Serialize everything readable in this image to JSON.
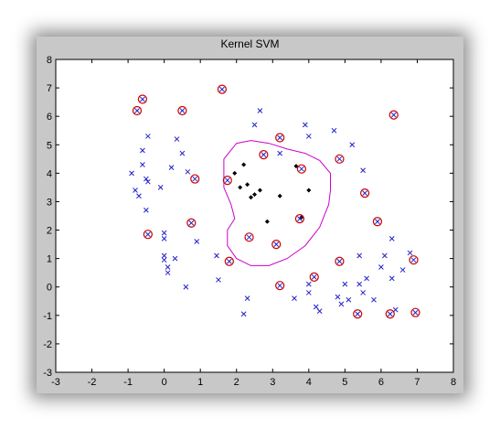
{
  "chart_data": {
    "type": "scatter",
    "title": "Kernel SVM",
    "xlim": [
      -3,
      8
    ],
    "ylim": [
      -3,
      8
    ],
    "xticks": [
      "-3",
      "-2",
      "-1",
      "0",
      "1",
      "2",
      "3",
      "4",
      "5",
      "6",
      "7",
      "8"
    ],
    "yticks": [
      "-3",
      "-2",
      "-1",
      "0",
      "1",
      "2",
      "3",
      "4",
      "5",
      "6",
      "7",
      "8"
    ],
    "grid": false,
    "colors": {
      "positive": "#000000",
      "negative": "#2222cc",
      "support_vector": "#cc0000",
      "boundary": "#cc00cc",
      "plot_bg": "#ffffff",
      "window_bg": "#c8c8c8"
    },
    "series": [
      {
        "marker": "x",
        "color": "#2222cc",
        "points": [
          [
            -0.9,
            4.0
          ],
          [
            -0.8,
            3.4
          ],
          [
            -0.7,
            3.2
          ],
          [
            -0.6,
            4.3
          ],
          [
            -0.6,
            4.8
          ],
          [
            -0.5,
            3.8
          ],
          [
            -0.45,
            3.7
          ],
          [
            -0.45,
            5.3
          ],
          [
            -0.5,
            2.7
          ],
          [
            -0.1,
            3.5
          ],
          [
            0.0,
            1.9
          ],
          [
            0.0,
            1.7
          ],
          [
            0.0,
            1.1
          ],
          [
            0.0,
            0.95
          ],
          [
            0.1,
            0.5
          ],
          [
            0.1,
            0.7
          ],
          [
            0.2,
            4.2
          ],
          [
            0.3,
            1.0
          ],
          [
            0.35,
            5.2
          ],
          [
            0.5,
            4.7
          ],
          [
            0.6,
            0.0
          ],
          [
            0.65,
            4.05
          ],
          [
            0.9,
            1.6
          ],
          [
            1.45,
            1.1
          ],
          [
            1.5,
            0.25
          ],
          [
            2.2,
            -0.95
          ],
          [
            2.3,
            -0.4
          ],
          [
            2.5,
            5.7
          ],
          [
            2.65,
            6.2
          ],
          [
            3.2,
            4.7
          ],
          [
            3.6,
            -0.4
          ],
          [
            3.9,
            5.7
          ],
          [
            4.0,
            5.3
          ],
          [
            4.0,
            -0.2
          ],
          [
            4.0,
            0.1
          ],
          [
            4.2,
            -0.7
          ],
          [
            4.3,
            -0.85
          ],
          [
            4.7,
            5.5
          ],
          [
            4.8,
            -0.35
          ],
          [
            4.9,
            -0.6
          ],
          [
            5.0,
            0.1
          ],
          [
            5.1,
            -0.45
          ],
          [
            5.2,
            5.0
          ],
          [
            5.4,
            0.1
          ],
          [
            5.4,
            1.1
          ],
          [
            5.5,
            -0.2
          ],
          [
            5.5,
            4.1
          ],
          [
            5.6,
            0.3
          ],
          [
            5.8,
            -0.45
          ],
          [
            6.0,
            0.7
          ],
          [
            6.1,
            1.1
          ],
          [
            6.3,
            0.3
          ],
          [
            6.3,
            1.7
          ],
          [
            6.4,
            -0.8
          ],
          [
            6.6,
            0.6
          ],
          [
            6.8,
            1.2
          ]
        ]
      },
      {
        "marker": "diamond",
        "color": "#000000",
        "points": [
          [
            1.95,
            4.0
          ],
          [
            2.1,
            3.5
          ],
          [
            2.2,
            4.3
          ],
          [
            2.3,
            3.6
          ],
          [
            2.4,
            3.15
          ],
          [
            2.5,
            3.25
          ],
          [
            2.65,
            3.4
          ],
          [
            2.85,
            2.3
          ],
          [
            3.2,
            3.2
          ],
          [
            3.65,
            4.25
          ],
          [
            3.8,
            2.45
          ],
          [
            4.0,
            3.4
          ]
        ]
      },
      {
        "marker": "circle-x",
        "color": "#cc0000",
        "points": [
          [
            -0.75,
            6.2
          ],
          [
            -0.6,
            6.6
          ],
          [
            -0.45,
            1.85
          ],
          [
            0.5,
            6.2
          ],
          [
            0.75,
            2.25
          ],
          [
            0.85,
            3.8
          ],
          [
            1.6,
            6.95
          ],
          [
            1.75,
            3.75
          ],
          [
            1.8,
            0.9
          ],
          [
            2.35,
            1.75
          ],
          [
            2.75,
            4.65
          ],
          [
            3.1,
            1.5
          ],
          [
            3.2,
            5.25
          ],
          [
            3.2,
            0.05
          ],
          [
            3.75,
            2.4
          ],
          [
            3.8,
            4.15
          ],
          [
            4.15,
            0.35
          ],
          [
            4.85,
            4.5
          ],
          [
            4.85,
            0.9
          ],
          [
            5.35,
            -0.95
          ],
          [
            5.55,
            3.3
          ],
          [
            5.9,
            2.3
          ],
          [
            6.25,
            -0.95
          ],
          [
            6.35,
            6.05
          ],
          [
            6.9,
            0.95
          ],
          [
            6.95,
            -0.9
          ]
        ]
      }
    ],
    "decision_boundary": [
      [
        1.65,
        4.5
      ],
      [
        2.0,
        5.05
      ],
      [
        2.4,
        5.15
      ],
      [
        2.9,
        5.05
      ],
      [
        3.4,
        4.85
      ],
      [
        3.9,
        4.7
      ],
      [
        4.3,
        4.45
      ],
      [
        4.6,
        4.0
      ],
      [
        4.6,
        3.4
      ],
      [
        4.55,
        2.9
      ],
      [
        4.3,
        2.1
      ],
      [
        3.9,
        1.45
      ],
      [
        3.4,
        1.0
      ],
      [
        2.9,
        0.75
      ],
      [
        2.4,
        0.75
      ],
      [
        2.0,
        1.0
      ],
      [
        1.75,
        1.45
      ],
      [
        1.75,
        2.0
      ],
      [
        1.95,
        2.4
      ],
      [
        1.85,
        2.9
      ],
      [
        1.65,
        3.5
      ],
      [
        1.65,
        4.5
      ]
    ]
  }
}
